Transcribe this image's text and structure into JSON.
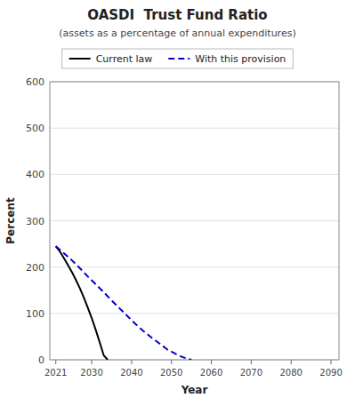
{
  "chart_data": {
    "type": "line",
    "title": "OASDI  Trust Fund Ratio",
    "subtitle": "(assets as a percentage of annual expenditures)",
    "x_label": "Year",
    "y_label": "Percent",
    "xlim": [
      2019.5,
      2092
    ],
    "ylim": [
      0,
      600
    ],
    "xticks": [
      2021,
      2030,
      2040,
      2050,
      2060,
      2070,
      2080,
      2090
    ],
    "yticks": [
      0,
      100,
      200,
      300,
      400,
      500,
      600
    ],
    "grid": true,
    "legend": "top",
    "series": [
      {
        "name": "Current law",
        "color": "#000000",
        "line_style": "solid",
        "x": [
          2021,
          2022,
          2023,
          2024,
          2025,
          2026,
          2027,
          2028,
          2029,
          2030,
          2031,
          2032,
          2033,
          2034
        ],
        "values": [
          245,
          234,
          220,
          205,
          190,
          173,
          155,
          135,
          113,
          90,
          65,
          38,
          10,
          0
        ]
      },
      {
        "name": "With this provision",
        "color": "#0000cc",
        "line_style": "dashed",
        "x": [
          2021,
          2023,
          2025,
          2027,
          2029,
          2031,
          2033,
          2035,
          2037,
          2039,
          2041,
          2043,
          2045,
          2047,
          2049,
          2051,
          2053,
          2055
        ],
        "values": [
          245,
          230,
          215,
          198,
          180,
          163,
          146,
          128,
          111,
          94,
          77,
          62,
          48,
          35,
          22,
          13,
          5,
          0
        ]
      }
    ]
  }
}
